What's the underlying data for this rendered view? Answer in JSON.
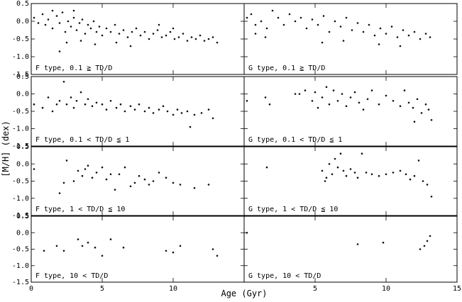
{
  "chart_data": {
    "type": "scatter",
    "xlabel": "Age (Gyr)",
    "ylabel": "[M/H] (dex)",
    "xlim": [
      0,
      15
    ],
    "ylim": [
      -1.5,
      0.5
    ],
    "x_ticks": [
      "0",
      "5",
      "10",
      "5",
      "10",
      "15"
    ],
    "y_ticks": [
      "0.5",
      "0.0",
      "-0.5",
      "-1.0",
      "-1.5"
    ],
    "grid": false,
    "layout": "4 rows x 2 columns",
    "panels": [
      {
        "label": "F type, 0.1 ≧ TD/D",
        "density": "dense",
        "trend": "decreasing [M/H] with age, ~0.0 at 1 Gyr to ~-0.5 at 13 Gyr",
        "points": [
          [
            0.2,
            0.1
          ],
          [
            0.5,
            -0.05
          ],
          [
            0.8,
            0.2
          ],
          [
            1.0,
            -0.1
          ],
          [
            1.2,
            0.05
          ],
          [
            1.5,
            -0.2
          ],
          [
            1.8,
            0.15
          ],
          [
            2.0,
            -0.05
          ],
          [
            2.2,
            0.25
          ],
          [
            2.4,
            -0.3
          ],
          [
            2.6,
            0.0
          ],
          [
            2.8,
            -0.15
          ],
          [
            3.0,
            0.1
          ],
          [
            3.2,
            -0.25
          ],
          [
            3.4,
            -0.05
          ],
          [
            3.6,
            0.05
          ],
          [
            3.8,
            -0.35
          ],
          [
            4.0,
            -0.1
          ],
          [
            4.2,
            -0.2
          ],
          [
            4.4,
            0.0
          ],
          [
            4.6,
            -0.3
          ],
          [
            4.8,
            -0.15
          ],
          [
            5.0,
            -0.4
          ],
          [
            5.3,
            -0.2
          ],
          [
            5.6,
            -0.3
          ],
          [
            5.9,
            -0.1
          ],
          [
            6.2,
            -0.35
          ],
          [
            6.5,
            -0.25
          ],
          [
            6.8,
            -0.45
          ],
          [
            7.1,
            -0.3
          ],
          [
            7.4,
            -0.2
          ],
          [
            7.7,
            -0.4
          ],
          [
            8.0,
            -0.3
          ],
          [
            8.3,
            -0.5
          ],
          [
            8.6,
            -0.35
          ],
          [
            8.9,
            -0.25
          ],
          [
            9.2,
            -0.45
          ],
          [
            9.5,
            -0.4
          ],
          [
            9.8,
            -0.3
          ],
          [
            10.1,
            -0.5
          ],
          [
            10.4,
            -0.45
          ],
          [
            10.7,
            -0.35
          ],
          [
            11.0,
            -0.55
          ],
          [
            11.3,
            -0.45
          ],
          [
            11.6,
            -0.5
          ],
          [
            11.9,
            -0.4
          ],
          [
            12.2,
            -0.55
          ],
          [
            12.5,
            -0.5
          ],
          [
            12.8,
            -0.45
          ],
          [
            13.1,
            -0.6
          ],
          [
            1.5,
            0.3
          ],
          [
            2.5,
            -0.6
          ],
          [
            3.5,
            -0.55
          ],
          [
            4.5,
            -0.65
          ],
          [
            6.0,
            -0.6
          ],
          [
            7.0,
            -0.7
          ],
          [
            2.0,
            -0.85
          ],
          [
            3.0,
            0.3
          ],
          [
            9.0,
            -0.1
          ],
          [
            10.0,
            -0.2
          ]
        ]
      },
      {
        "label": "G type, 0.1 ≧ TD/D",
        "density": "dense",
        "trend": "decreasing [M/H] with age",
        "points": [
          [
            0.2,
            0.1
          ],
          [
            0.5,
            0.2
          ],
          [
            0.8,
            -0.1
          ],
          [
            1.2,
            0.0
          ],
          [
            1.6,
            -0.2
          ],
          [
            2.0,
            0.3
          ],
          [
            2.4,
            0.1
          ],
          [
            2.8,
            -0.1
          ],
          [
            3.2,
            0.2
          ],
          [
            3.6,
            0.0
          ],
          [
            4.0,
            0.1
          ],
          [
            4.4,
            -0.2
          ],
          [
            4.8,
            0.05
          ],
          [
            5.2,
            -0.1
          ],
          [
            5.6,
            0.15
          ],
          [
            6.0,
            -0.3
          ],
          [
            6.4,
            0.0
          ],
          [
            6.8,
            -0.15
          ],
          [
            7.2,
            0.1
          ],
          [
            7.6,
            -0.25
          ],
          [
            8.0,
            -0.05
          ],
          [
            8.4,
            -0.3
          ],
          [
            8.8,
            -0.1
          ],
          [
            9.2,
            -0.4
          ],
          [
            9.6,
            -0.2
          ],
          [
            10.0,
            -0.35
          ],
          [
            10.4,
            -0.15
          ],
          [
            10.8,
            -0.45
          ],
          [
            11.2,
            -0.25
          ],
          [
            11.6,
            -0.4
          ],
          [
            12.0,
            -0.3
          ],
          [
            12.4,
            -0.5
          ],
          [
            12.8,
            -0.35
          ],
          [
            13.1,
            -0.45
          ],
          [
            0.8,
            -0.35
          ],
          [
            1.5,
            -0.45
          ],
          [
            5.5,
            -0.6
          ],
          [
            7.0,
            -0.55
          ],
          [
            9.5,
            -0.65
          ],
          [
            11.0,
            -0.7
          ]
        ]
      },
      {
        "label": "F type, 0.1 < TD/D ≦ 1",
        "density": "moderate",
        "points": [
          [
            0.2,
            -0.3
          ],
          [
            0.8,
            -0.4
          ],
          [
            1.2,
            -0.1
          ],
          [
            1.5,
            -0.5
          ],
          [
            1.8,
            -0.3
          ],
          [
            2.0,
            -0.2
          ],
          [
            2.3,
            0.35
          ],
          [
            2.5,
            -0.3
          ],
          [
            2.8,
            -0.1
          ],
          [
            3.0,
            -0.4
          ],
          [
            3.2,
            -0.2
          ],
          [
            3.5,
            0.05
          ],
          [
            3.8,
            -0.3
          ],
          [
            4.0,
            -0.15
          ],
          [
            4.3,
            -0.35
          ],
          [
            4.6,
            -0.25
          ],
          [
            5.0,
            -0.3
          ],
          [
            5.3,
            -0.45
          ],
          [
            5.6,
            -0.2
          ],
          [
            6.0,
            -0.4
          ],
          [
            6.3,
            -0.3
          ],
          [
            6.6,
            -0.5
          ],
          [
            7.0,
            -0.35
          ],
          [
            7.3,
            -0.45
          ],
          [
            7.6,
            -0.3
          ],
          [
            8.0,
            -0.5
          ],
          [
            8.3,
            -0.4
          ],
          [
            8.6,
            -0.55
          ],
          [
            9.0,
            -0.45
          ],
          [
            9.3,
            -0.35
          ],
          [
            9.6,
            -0.5
          ],
          [
            10.0,
            -0.6
          ],
          [
            10.3,
            -0.45
          ],
          [
            10.6,
            -0.55
          ],
          [
            11.0,
            -0.5
          ],
          [
            11.5,
            -0.6
          ],
          [
            12.0,
            -0.55
          ],
          [
            12.5,
            -0.45
          ],
          [
            12.8,
            -0.7
          ],
          [
            11.2,
            -0.95
          ]
        ]
      },
      {
        "label": "G type, 0.1 < TD/D ≦ 1",
        "density": "moderate",
        "points": [
          [
            0.2,
            -0.2
          ],
          [
            1.5,
            -0.1
          ],
          [
            1.8,
            -0.3
          ],
          [
            3.6,
            0.0
          ],
          [
            3.9,
            0.0
          ],
          [
            4.3,
            0.1
          ],
          [
            4.8,
            -0.2
          ],
          [
            5.0,
            0.05
          ],
          [
            5.2,
            -0.4
          ],
          [
            5.5,
            -0.1
          ],
          [
            5.8,
            0.2
          ],
          [
            6.0,
            -0.3
          ],
          [
            6.3,
            0.1
          ],
          [
            6.6,
            -0.2
          ],
          [
            6.9,
            0.0
          ],
          [
            7.2,
            -0.35
          ],
          [
            7.5,
            -0.1
          ],
          [
            7.8,
            0.05
          ],
          [
            8.1,
            -0.25
          ],
          [
            8.4,
            -0.45
          ],
          [
            8.7,
            -0.15
          ],
          [
            9.0,
            0.1
          ],
          [
            9.5,
            -0.3
          ],
          [
            10.0,
            -0.05
          ],
          [
            10.5,
            -0.2
          ],
          [
            11.0,
            -0.35
          ],
          [
            11.3,
            0.1
          ],
          [
            11.6,
            -0.25
          ],
          [
            11.9,
            -0.4
          ],
          [
            12.2,
            -0.15
          ],
          [
            12.5,
            -0.55
          ],
          [
            12.8,
            -0.3
          ],
          [
            13.0,
            -0.45
          ],
          [
            13.2,
            -0.75
          ],
          [
            12.0,
            -0.8
          ]
        ]
      },
      {
        "label": "F type, 1 < TD/D ≦ 10",
        "density": "sparse",
        "points": [
          [
            0.2,
            -0.15
          ],
          [
            2.0,
            -0.85
          ],
          [
            2.3,
            -0.55
          ],
          [
            2.5,
            0.1
          ],
          [
            3.0,
            -0.5
          ],
          [
            3.3,
            -0.2
          ],
          [
            3.6,
            -0.35
          ],
          [
            3.8,
            -0.15
          ],
          [
            4.0,
            -0.05
          ],
          [
            4.3,
            -0.4
          ],
          [
            4.6,
            -0.25
          ],
          [
            5.0,
            -0.1
          ],
          [
            5.3,
            -0.45
          ],
          [
            5.6,
            -0.3
          ],
          [
            5.9,
            -0.75
          ],
          [
            6.2,
            -0.3
          ],
          [
            6.6,
            -0.1
          ],
          [
            7.0,
            -0.65
          ],
          [
            7.3,
            -0.55
          ],
          [
            7.6,
            -0.35
          ],
          [
            8.0,
            -0.45
          ],
          [
            8.3,
            -0.6
          ],
          [
            8.6,
            -0.5
          ],
          [
            9.0,
            -0.25
          ],
          [
            9.5,
            -0.4
          ],
          [
            10.0,
            -0.55
          ],
          [
            10.5,
            -0.6
          ],
          [
            11.5,
            -0.7
          ],
          [
            12.5,
            -0.6
          ]
        ]
      },
      {
        "label": "G type, 1 < TD/D ≦ 10",
        "density": "sparse",
        "points": [
          [
            1.6,
            -0.1
          ],
          [
            5.5,
            -0.2
          ],
          [
            5.8,
            -0.4
          ],
          [
            6.0,
            0.0
          ],
          [
            6.2,
            -0.3
          ],
          [
            6.4,
            0.15
          ],
          [
            6.6,
            -0.1
          ],
          [
            6.8,
            0.3
          ],
          [
            7.0,
            -0.2
          ],
          [
            7.2,
            -0.35
          ],
          [
            7.5,
            -0.15
          ],
          [
            7.8,
            -0.25
          ],
          [
            8.0,
            -0.4
          ],
          [
            8.3,
            0.3
          ],
          [
            8.6,
            -0.25
          ],
          [
            9.0,
            -0.3
          ],
          [
            9.5,
            -0.35
          ],
          [
            10.0,
            -0.3
          ],
          [
            10.5,
            -0.25
          ],
          [
            11.0,
            -0.2
          ],
          [
            11.4,
            -0.3
          ],
          [
            11.7,
            -0.45
          ],
          [
            12.0,
            -0.35
          ],
          [
            12.3,
            0.1
          ],
          [
            12.6,
            -0.5
          ],
          [
            12.9,
            -0.6
          ],
          [
            13.2,
            -0.95
          ],
          [
            5.7,
            -0.5
          ]
        ]
      },
      {
        "label": "F type, 10 < TD/D",
        "density": "very sparse",
        "points": [
          [
            0.9,
            -0.55
          ],
          [
            1.8,
            -0.4
          ],
          [
            2.3,
            -0.55
          ],
          [
            3.3,
            -0.2
          ],
          [
            3.6,
            -0.4
          ],
          [
            4.0,
            -0.3
          ],
          [
            4.5,
            -0.45
          ],
          [
            5.0,
            -0.7
          ],
          [
            5.6,
            -0.2
          ],
          [
            6.5,
            -0.45
          ],
          [
            9.5,
            -0.55
          ],
          [
            10.0,
            -0.6
          ],
          [
            10.5,
            -0.4
          ],
          [
            12.8,
            -0.5
          ],
          [
            13.1,
            -0.7
          ]
        ]
      },
      {
        "label": "G type, 10 < TD/D",
        "density": "very sparse",
        "points": [
          [
            0.2,
            0.0
          ],
          [
            8.0,
            -0.35
          ],
          [
            9.8,
            -0.3
          ],
          [
            12.4,
            -0.5
          ],
          [
            12.7,
            -0.4
          ],
          [
            12.9,
            -0.25
          ],
          [
            13.1,
            -0.1
          ]
        ]
      }
    ]
  }
}
